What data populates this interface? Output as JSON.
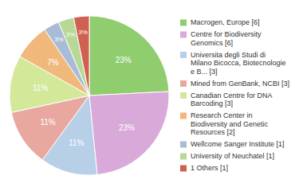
{
  "chart_data": {
    "type": "pie",
    "categories": [
      "Macrogen, Europe [6]",
      "Centre for Biodiversity\nGenomics [6]",
      "Universita degli Studi di\nMilano Bicocca, Biotecnologie\ne B... [3]",
      "Mined from GenBank, NCBI [3]",
      "Canadian Centre for DNA\nBarcoding [3]",
      "Research Center in\nBiodiversity and Genetic\nResources [2]",
      "Wellcome Sanger Institute [1]",
      "University of Neuchatel [1]",
      "1 Others [1]"
    ],
    "values": [
      23,
      23,
      11,
      11,
      11,
      7,
      3,
      3,
      3
    ],
    "value_labels": [
      "23%",
      "23%",
      "11%",
      "11%",
      "11%",
      "7%",
      "3%",
      "3%",
      "3%"
    ],
    "colors": [
      "#8fcd6e",
      "#d9a9d9",
      "#b8cfe8",
      "#e8a8a0",
      "#d4e89a",
      "#f0b87a",
      "#a8bcd8",
      "#b8d898",
      "#d06050"
    ],
    "data_labels": true,
    "legend": "right"
  }
}
